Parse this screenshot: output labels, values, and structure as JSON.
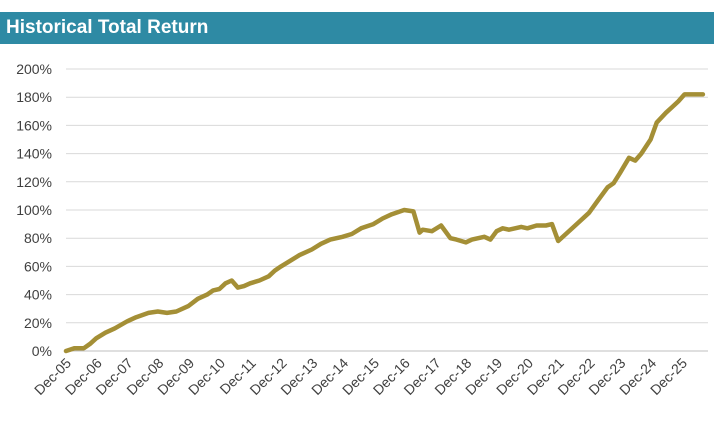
{
  "header": {
    "title": "Historical Total Return"
  },
  "colors": {
    "title_bar": "#2e8aa4",
    "line": "#a48f36",
    "grid": "#d9d9d9",
    "axis": "#bfbfbf",
    "tick_text": "#404040"
  },
  "chart_data": {
    "type": "line",
    "title": "Historical Total Return",
    "xlabel": "",
    "ylabel": "",
    "grid": "horizontal",
    "legend": "none",
    "ylim": [
      0,
      200
    ],
    "y_ticks": [
      "0%",
      "20%",
      "40%",
      "60%",
      "80%",
      "100%",
      "120%",
      "140%",
      "160%",
      "180%",
      "200%"
    ],
    "x_ticks": [
      "Dec-05",
      "Dec-06",
      "Dec-07",
      "Dec-08",
      "Dec-09",
      "Dec-10",
      "Dec-11",
      "Dec-12",
      "Dec-13",
      "Dec-14",
      "Dec-15",
      "Dec-16",
      "Dec-17",
      "Dec-18",
      "Dec-19",
      "Dec-20",
      "Dec-21",
      "Dec-22",
      "Dec-23",
      "Dec-24",
      "Dec-25"
    ],
    "series": [
      {
        "x": [
          2005.92,
          2006.2,
          2006.5,
          2006.7,
          2006.9,
          2007.2,
          2007.5,
          2007.9,
          2008.2,
          2008.6,
          2008.9,
          2009.2,
          2009.5,
          2009.9,
          2010.2,
          2010.5,
          2010.7,
          2010.9,
          2011.1,
          2011.3,
          2011.5,
          2011.7,
          2011.9,
          2012.2,
          2012.5,
          2012.7,
          2012.9,
          2013.2,
          2013.5,
          2013.9,
          2014.2,
          2014.5,
          2014.9,
          2015.2,
          2015.5,
          2015.9,
          2016.2,
          2016.5,
          2016.9,
          2017.2,
          2017.4,
          2017.5,
          2017.8,
          2018.1,
          2018.4,
          2018.6,
          2018.9,
          2019.1,
          2019.3,
          2019.5,
          2019.7,
          2019.9,
          2020.1,
          2020.3,
          2020.5,
          2020.7,
          2020.9,
          2021.2,
          2021.5,
          2021.7,
          2021.9,
          2022.2,
          2022.5,
          2022.9,
          2023.2,
          2023.5,
          2023.7,
          2023.9,
          2024.2,
          2024.4,
          2024.6,
          2024.9,
          2025.1,
          2025.4,
          2025.6,
          2025.8,
          2026.0,
          2026.2,
          2026.4,
          2026.6
        ],
        "values": [
          0,
          2,
          2,
          5,
          9,
          13,
          16,
          21,
          24,
          27,
          28,
          27,
          28,
          32,
          37,
          40,
          43,
          44,
          48,
          50,
          45,
          46,
          48,
          50,
          53,
          57,
          60,
          64,
          68,
          72,
          76,
          79,
          81,
          83,
          87,
          90,
          94,
          97,
          100,
          99,
          84,
          86,
          85,
          89,
          80,
          79,
          77,
          79,
          80,
          81,
          79,
          85,
          87,
          86,
          87,
          88,
          87,
          89,
          89,
          90,
          78,
          84,
          90,
          98,
          107,
          116,
          119,
          126,
          137,
          135,
          140,
          150,
          162,
          169,
          173,
          177,
          182,
          182,
          182,
          182
        ]
      }
    ]
  }
}
